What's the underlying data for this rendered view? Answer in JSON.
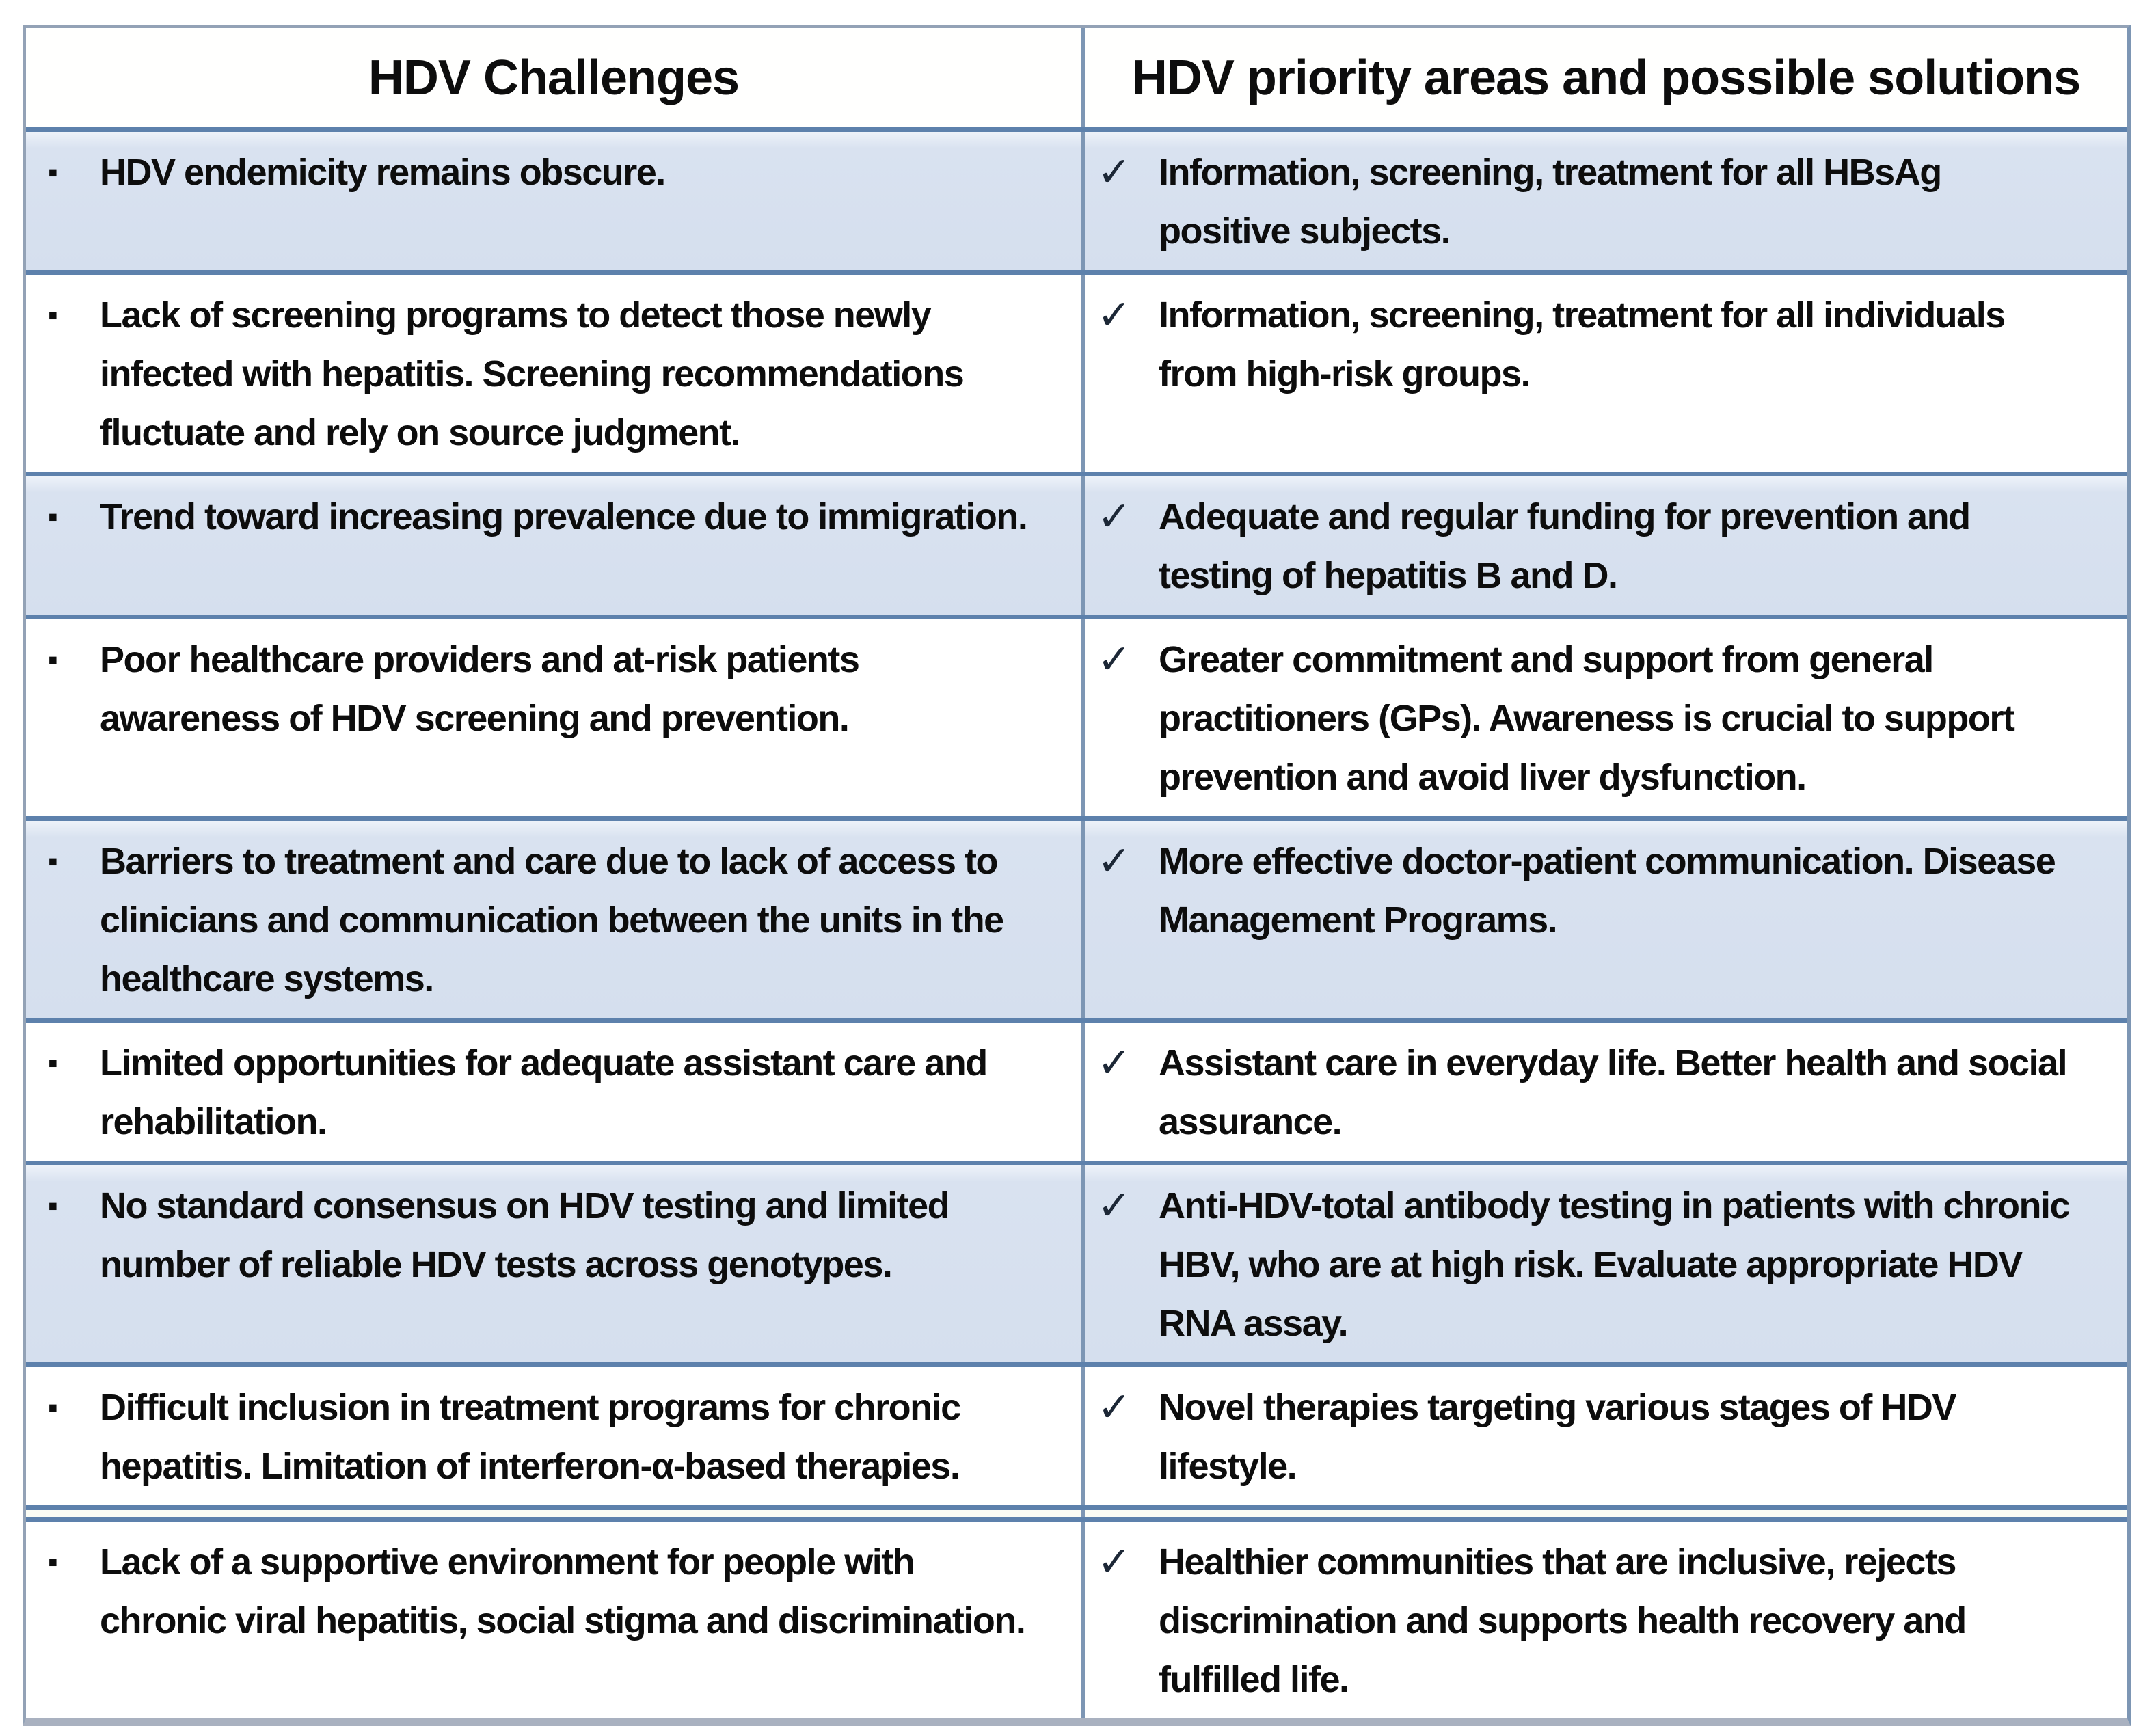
{
  "table": {
    "columns": [
      {
        "header": "HDV Challenges"
      },
      {
        "header": "HDV priority areas and possible solutions"
      }
    ],
    "icons": {
      "bullet": "▪",
      "check": "✓"
    },
    "colors": {
      "text": "#0d0d0d",
      "row_shaded_bg": "#d9e2f0",
      "row_plain_bg": "#ffffff",
      "separator": "#5d81ac",
      "divider": "#7d96b4",
      "outer_border": "#93a2b6",
      "bottom_border": "#a9b1c0",
      "check": "#1c2736",
      "bullet": "#0d0d0d"
    },
    "rows": [
      {
        "shaded": true,
        "challenge": "HDV endemicity remains obscure.",
        "solution": "Information, screening, treatment for all HBsAg\npositive subjects."
      },
      {
        "shaded": false,
        "challenge": "Lack of screening programs to detect those newly\ninfected with hepatitis. Screening recommendations\nfluctuate and rely on source judgment.",
        "solution": "Information, screening, treatment for all individuals\nfrom high-risk groups."
      },
      {
        "shaded": true,
        "challenge": "Trend toward increasing prevalence due to immigration.",
        "solution": "Adequate and regular funding for prevention and\ntesting of hepatitis B and D."
      },
      {
        "shaded": false,
        "challenge": "Poor healthcare providers and at-risk patients\nawareness of HDV screening and prevention.",
        "solution": "Greater commitment and support from general\npractitioners (GPs). Awareness is crucial to support\nprevention and avoid liver dysfunction."
      },
      {
        "shaded": true,
        "challenge": "Barriers to treatment and care due to lack of access to\nclinicians and communication between the units in the\nhealthcare systems.",
        "solution": "More effective doctor-patient communication. Disease\nManagement Programs."
      },
      {
        "shaded": false,
        "challenge": "Limited opportunities for adequate assistant care and\nrehabilitation.",
        "solution": "Assistant care in everyday life. Better health and social\nassurance."
      },
      {
        "shaded": true,
        "challenge": "No standard consensus on HDV testing and limited\nnumber of reliable HDV tests across genotypes.",
        "solution": "Anti-HDV-total antibody testing in patients with chronic\nHBV, who are at high risk. Evaluate appropriate HDV\nRNA assay."
      },
      {
        "shaded": false,
        "challenge": "Difficult inclusion in treatment programs for chronic\nhepatitis. Limitation of interferon-α-based therapies.",
        "solution": "Novel therapies targeting various stages of HDV\nlifestyle."
      },
      {
        "shaded": false,
        "challenge": "Lack of a supportive environment for people with\nchronic viral hepatitis, social stigma and discrimination.",
        "solution": "Healthier communities that are inclusive, rejects\ndiscrimination and supports health recovery and\nfulfilled life."
      }
    ]
  }
}
